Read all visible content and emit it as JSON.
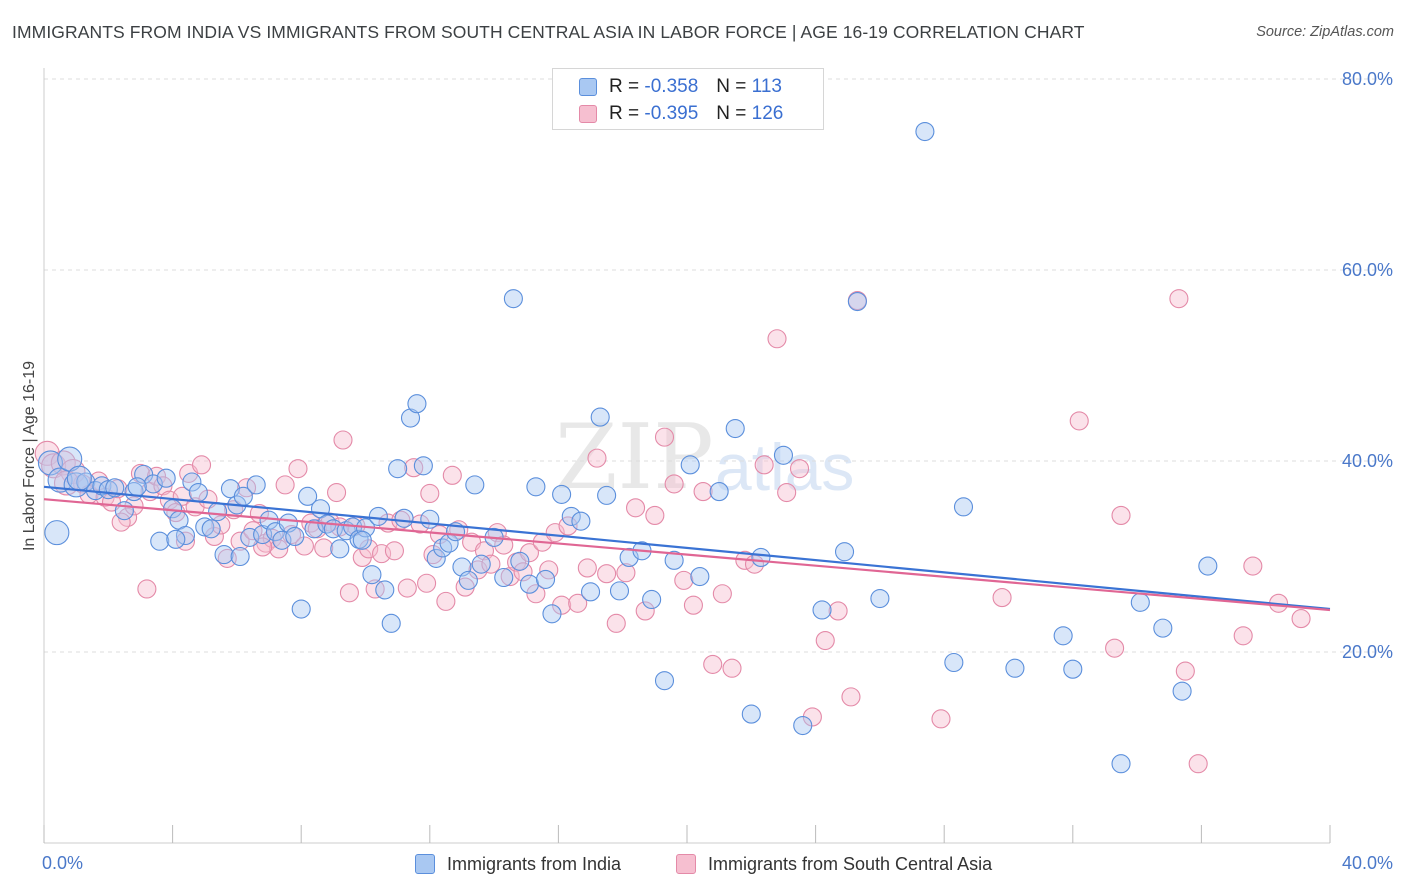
{
  "header": {
    "title": "IMMIGRANTS FROM INDIA VS IMMIGRANTS FROM SOUTH CENTRAL ASIA IN LABOR FORCE | AGE 16-19 CORRELATION CHART",
    "source": "Source: ZipAtlas.com"
  },
  "legend": {
    "rows": [
      {
        "r_label": "R = ",
        "r_value": "-0.358",
        "n_label": "N = ",
        "n_value": "113"
      },
      {
        "r_label": "R = ",
        "r_value": "-0.395",
        "n_label": "N = ",
        "n_value": "126"
      }
    ]
  },
  "watermark": {
    "zip": "ZIP",
    "atlas": "atlas"
  },
  "colors": {
    "india_fill": "#a9c8f2",
    "india_stroke": "#5b8fdc",
    "india_line": "#3a73d4",
    "sca_fill": "#f6bfd0",
    "sca_stroke": "#e48aa8",
    "sca_line": "#e06694",
    "grid": "#dddddd",
    "axis_text": "#4a78c9"
  },
  "chart_data": {
    "type": "scatter",
    "title": "IMMIGRANTS FROM INDIA VS IMMIGRANTS FROM SOUTH CENTRAL ASIA IN LABOR FORCE | AGE 16-19 CORRELATION CHART",
    "xlabel": "",
    "ylabel": "In Labor Force | Age 16-19",
    "xlim": [
      0,
      40
    ],
    "ylim": [
      0,
      80
    ],
    "x_tick_labels": [
      {
        "x": 0,
        "label": "0.0%"
      },
      {
        "x": 40,
        "label": "40.0%"
      }
    ],
    "y_tick_labels": [
      {
        "y": 20,
        "label": "20.0%"
      },
      {
        "y": 40,
        "label": "40.0%"
      },
      {
        "y": 60,
        "label": "60.0%"
      },
      {
        "y": 80,
        "label": "80.0%"
      }
    ],
    "legend_placement": "top-center",
    "series": [
      {
        "name": "Immigrants from India",
        "color": "#5b8fdc",
        "r": -0.358,
        "n": 113,
        "trend": {
          "x0": 0,
          "y0": 37.3,
          "x1": 40,
          "y1": 24.5
        },
        "points": [
          [
            0.2,
            39.8
          ],
          [
            0.5,
            38.0
          ],
          [
            0.8,
            40.2
          ],
          [
            1.0,
            37.5
          ],
          [
            1.3,
            37.8
          ],
          [
            1.6,
            36.9
          ],
          [
            1.8,
            37.4
          ],
          [
            2.0,
            37.0
          ],
          [
            2.2,
            37.2
          ],
          [
            2.5,
            34.8
          ],
          [
            2.8,
            36.8
          ],
          [
            3.1,
            38.6
          ],
          [
            3.4,
            37.6
          ],
          [
            3.6,
            31.6
          ],
          [
            3.8,
            38.2
          ],
          [
            4.0,
            35.0
          ],
          [
            4.2,
            33.8
          ],
          [
            4.4,
            32.2
          ],
          [
            4.6,
            37.8
          ],
          [
            4.8,
            36.7
          ],
          [
            5.0,
            33.1
          ],
          [
            5.2,
            32.9
          ],
          [
            5.4,
            34.7
          ],
          [
            5.6,
            30.2
          ],
          [
            5.8,
            37.1
          ],
          [
            6.0,
            35.4
          ],
          [
            6.2,
            36.3
          ],
          [
            6.4,
            32.0
          ],
          [
            6.6,
            37.5
          ],
          [
            6.8,
            32.3
          ],
          [
            7.0,
            33.8
          ],
          [
            7.2,
            32.6
          ],
          [
            7.4,
            31.7
          ],
          [
            7.6,
            33.5
          ],
          [
            7.8,
            32.1
          ],
          [
            8.0,
            24.5
          ],
          [
            8.2,
            36.3
          ],
          [
            8.4,
            32.9
          ],
          [
            8.6,
            35.0
          ],
          [
            8.8,
            33.4
          ],
          [
            9.0,
            32.9
          ],
          [
            9.2,
            30.8
          ],
          [
            9.4,
            32.7
          ],
          [
            9.6,
            33.1
          ],
          [
            9.8,
            31.8
          ],
          [
            10.0,
            33.0
          ],
          [
            10.2,
            28.1
          ],
          [
            10.4,
            34.2
          ],
          [
            10.6,
            26.5
          ],
          [
            10.8,
            23.0
          ],
          [
            11.0,
            39.2
          ],
          [
            11.2,
            34.0
          ],
          [
            11.4,
            44.5
          ],
          [
            11.6,
            46.0
          ],
          [
            11.8,
            39.5
          ],
          [
            12.0,
            33.9
          ],
          [
            12.2,
            29.8
          ],
          [
            12.4,
            30.9
          ],
          [
            12.6,
            31.4
          ],
          [
            12.8,
            32.6
          ],
          [
            13.0,
            28.9
          ],
          [
            13.2,
            27.5
          ],
          [
            13.4,
            37.5
          ],
          [
            13.6,
            29.2
          ],
          [
            14.0,
            32.0
          ],
          [
            14.3,
            27.8
          ],
          [
            14.6,
            57.0
          ],
          [
            14.8,
            29.5
          ],
          [
            15.1,
            27.1
          ],
          [
            15.3,
            37.3
          ],
          [
            15.6,
            27.6
          ],
          [
            15.8,
            24.0
          ],
          [
            16.1,
            36.5
          ],
          [
            16.4,
            34.2
          ],
          [
            16.7,
            33.7
          ],
          [
            17.0,
            26.3
          ],
          [
            17.3,
            44.6
          ],
          [
            17.5,
            36.4
          ],
          [
            17.9,
            26.4
          ],
          [
            18.2,
            29.9
          ],
          [
            18.6,
            30.6
          ],
          [
            18.9,
            25.5
          ],
          [
            19.3,
            17.0
          ],
          [
            19.6,
            29.6
          ],
          [
            20.1,
            39.6
          ],
          [
            20.4,
            27.9
          ],
          [
            21.0,
            36.8
          ],
          [
            21.5,
            43.4
          ],
          [
            22.0,
            13.5
          ],
          [
            22.3,
            29.9
          ],
          [
            23.0,
            40.6
          ],
          [
            23.6,
            12.3
          ],
          [
            24.2,
            24.4
          ],
          [
            24.9,
            30.5
          ],
          [
            25.3,
            56.7
          ],
          [
            26.0,
            25.6
          ],
          [
            27.4,
            74.5
          ],
          [
            28.3,
            18.9
          ],
          [
            28.6,
            35.2
          ],
          [
            30.2,
            18.3
          ],
          [
            31.7,
            21.7
          ],
          [
            32.0,
            18.2
          ],
          [
            33.5,
            8.3
          ],
          [
            34.1,
            25.2
          ],
          [
            34.8,
            22.5
          ],
          [
            35.4,
            15.9
          ],
          [
            36.2,
            29.0
          ],
          [
            0.4,
            32.5
          ],
          [
            1.1,
            38.2
          ],
          [
            2.9,
            37.3
          ],
          [
            4.1,
            31.8
          ],
          [
            6.1,
            30.0
          ],
          [
            9.9,
            31.7
          ]
        ]
      },
      {
        "name": "Immigrants from South Central Asia",
        "color": "#e48aa8",
        "r": -0.395,
        "n": 126,
        "trend": {
          "x0": 0,
          "y0": 36.0,
          "x1": 40,
          "y1": 24.4
        },
        "points": [
          [
            0.1,
            40.8
          ],
          [
            0.3,
            39.5
          ],
          [
            0.6,
            39.8
          ],
          [
            0.9,
            38.9
          ],
          [
            1.2,
            37.6
          ],
          [
            1.4,
            36.5
          ],
          [
            1.7,
            37.9
          ],
          [
            1.9,
            36.2
          ],
          [
            2.1,
            35.7
          ],
          [
            2.3,
            37.1
          ],
          [
            2.6,
            34.1
          ],
          [
            2.8,
            35.3
          ],
          [
            3.0,
            38.7
          ],
          [
            3.2,
            26.6
          ],
          [
            3.3,
            36.8
          ],
          [
            3.5,
            38.4
          ],
          [
            3.7,
            37.4
          ],
          [
            3.9,
            35.9
          ],
          [
            4.1,
            34.6
          ],
          [
            4.3,
            36.3
          ],
          [
            4.5,
            38.7
          ],
          [
            4.7,
            35.2
          ],
          [
            4.9,
            39.6
          ],
          [
            5.1,
            36.0
          ],
          [
            5.3,
            32.1
          ],
          [
            5.5,
            33.3
          ],
          [
            5.7,
            29.8
          ],
          [
            5.9,
            34.9
          ],
          [
            6.1,
            31.6
          ],
          [
            6.3,
            37.2
          ],
          [
            6.5,
            32.7
          ],
          [
            6.7,
            34.5
          ],
          [
            6.9,
            31.4
          ],
          [
            7.1,
            31.9
          ],
          [
            7.3,
            30.8
          ],
          [
            7.5,
            37.5
          ],
          [
            7.7,
            32.3
          ],
          [
            7.9,
            39.2
          ],
          [
            8.1,
            31.1
          ],
          [
            8.3,
            33.5
          ],
          [
            8.5,
            32.9
          ],
          [
            8.7,
            30.9
          ],
          [
            8.9,
            33.6
          ],
          [
            9.1,
            36.7
          ],
          [
            9.3,
            42.2
          ],
          [
            9.5,
            26.2
          ],
          [
            9.7,
            33.2
          ],
          [
            9.9,
            29.9
          ],
          [
            10.1,
            30.8
          ],
          [
            10.3,
            26.6
          ],
          [
            10.5,
            30.3
          ],
          [
            10.7,
            33.5
          ],
          [
            10.9,
            30.6
          ],
          [
            11.1,
            33.8
          ],
          [
            11.3,
            26.7
          ],
          [
            11.5,
            39.3
          ],
          [
            11.7,
            33.4
          ],
          [
            11.9,
            27.2
          ],
          [
            12.1,
            30.2
          ],
          [
            12.3,
            32.3
          ],
          [
            12.5,
            25.3
          ],
          [
            12.7,
            38.5
          ],
          [
            12.9,
            32.8
          ],
          [
            13.1,
            26.8
          ],
          [
            13.3,
            31.5
          ],
          [
            13.5,
            28.6
          ],
          [
            13.7,
            30.6
          ],
          [
            13.9,
            29.2
          ],
          [
            14.1,
            32.5
          ],
          [
            14.3,
            31.2
          ],
          [
            14.5,
            27.9
          ],
          [
            14.7,
            29.4
          ],
          [
            14.9,
            28.4
          ],
          [
            15.1,
            30.4
          ],
          [
            15.3,
            26.1
          ],
          [
            15.5,
            31.5
          ],
          [
            15.7,
            28.6
          ],
          [
            15.9,
            32.5
          ],
          [
            16.1,
            24.9
          ],
          [
            16.3,
            33.2
          ],
          [
            16.6,
            25.1
          ],
          [
            16.9,
            28.8
          ],
          [
            17.2,
            40.3
          ],
          [
            17.5,
            28.2
          ],
          [
            17.8,
            23.0
          ],
          [
            18.1,
            28.3
          ],
          [
            18.4,
            35.1
          ],
          [
            18.7,
            24.3
          ],
          [
            19.0,
            34.3
          ],
          [
            19.3,
            42.5
          ],
          [
            19.6,
            37.6
          ],
          [
            19.9,
            27.5
          ],
          [
            20.2,
            24.9
          ],
          [
            20.5,
            36.8
          ],
          [
            20.8,
            18.7
          ],
          [
            21.1,
            26.1
          ],
          [
            21.4,
            18.3
          ],
          [
            21.8,
            29.6
          ],
          [
            22.1,
            29.2
          ],
          [
            22.4,
            39.6
          ],
          [
            22.8,
            52.8
          ],
          [
            23.1,
            36.7
          ],
          [
            23.5,
            39.2
          ],
          [
            23.9,
            13.2
          ],
          [
            24.3,
            21.2
          ],
          [
            24.7,
            24.3
          ],
          [
            25.1,
            15.3
          ],
          [
            25.3,
            56.8
          ],
          [
            27.9,
            13.0
          ],
          [
            29.8,
            25.7
          ],
          [
            32.2,
            44.2
          ],
          [
            33.3,
            20.4
          ],
          [
            33.5,
            34.3
          ],
          [
            35.3,
            57.0
          ],
          [
            35.5,
            18.0
          ],
          [
            35.9,
            8.3
          ],
          [
            37.3,
            21.7
          ],
          [
            37.6,
            29.0
          ],
          [
            38.4,
            25.1
          ],
          [
            39.1,
            23.5
          ],
          [
            0.7,
            37.7
          ],
          [
            2.4,
            33.6
          ],
          [
            4.4,
            31.6
          ],
          [
            6.8,
            31.0
          ],
          [
            9.2,
            33.1
          ],
          [
            12.0,
            36.6
          ]
        ]
      }
    ]
  },
  "bottom_legend": [
    {
      "label": "Immigrants from India"
    },
    {
      "label": "Immigrants from South Central Asia"
    }
  ]
}
